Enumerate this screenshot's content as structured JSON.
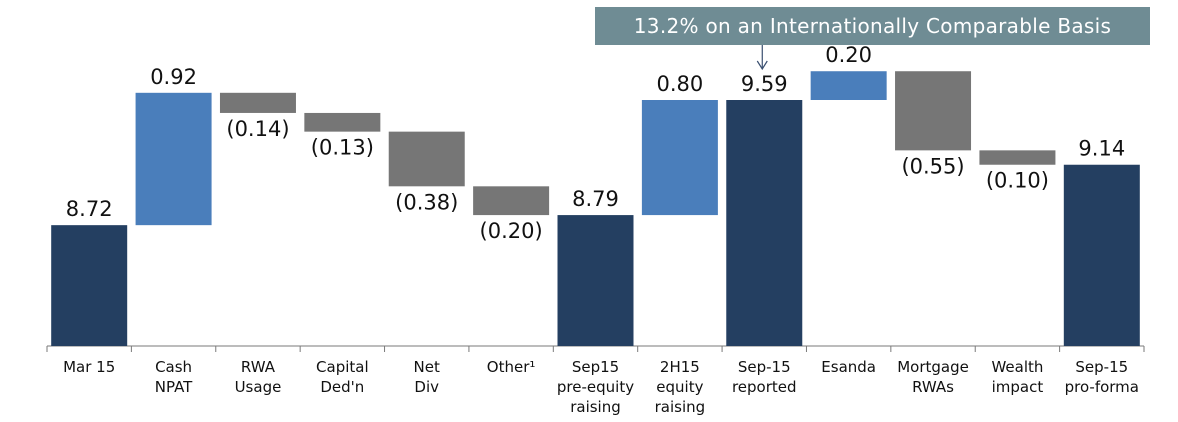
{
  "chart_data": {
    "type": "waterfall",
    "title": "",
    "annotation": "13.2% on an Internationally Comparable Basis",
    "categories": [
      [
        "Mar 15"
      ],
      [
        "Cash",
        "NPAT"
      ],
      [
        "RWA",
        "Usage"
      ],
      [
        "Capital",
        "Ded'n"
      ],
      [
        "Net",
        "Div"
      ],
      [
        "Other¹"
      ],
      [
        "Sep15",
        "pre-equity",
        "raising"
      ],
      [
        "2H15",
        "equity",
        "raising"
      ],
      [
        "Sep-15",
        "reported"
      ],
      [
        "Esanda"
      ],
      [
        "Mortgage",
        "RWAs"
      ],
      [
        "Wealth",
        "impact"
      ],
      [
        "Sep-15",
        "pro-forma"
      ]
    ],
    "values": [
      8.72,
      0.92,
      -0.14,
      -0.13,
      -0.38,
      -0.2,
      8.79,
      0.8,
      9.59,
      0.2,
      -0.55,
      -0.1,
      9.14
    ],
    "value_labels": [
      "8.72",
      "0.92",
      "(0.14)",
      "(0.13)",
      "(0.38)",
      "(0.20)",
      "8.79",
      "0.80",
      "9.59",
      "0.20",
      "(0.55)",
      "(0.10)",
      "9.14"
    ],
    "bar_kinds": [
      "total",
      "increase",
      "decrease",
      "decrease",
      "decrease",
      "decrease",
      "total",
      "increase",
      "total",
      "increase",
      "decrease",
      "decrease",
      "total"
    ],
    "colors": {
      "total": "#243f61",
      "increase": "#4a7ebb",
      "decrease": "#767676",
      "callout": "#6f8c94"
    }
  }
}
